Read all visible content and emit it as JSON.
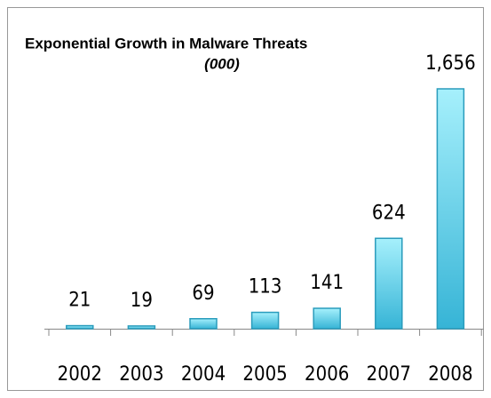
{
  "chart_data": {
    "type": "bar",
    "title": "Exponential Growth in Malware Threats",
    "subtitle": "(000)",
    "categories": [
      "2002",
      "2003",
      "2004",
      "2005",
      "2006",
      "2007",
      "2008"
    ],
    "values": [
      21,
      19,
      69,
      113,
      141,
      624,
      1656
    ],
    "value_labels": [
      "21",
      "19",
      "69",
      "113",
      "141",
      "624",
      "1,656"
    ],
    "color": "#5fd0ea"
  }
}
